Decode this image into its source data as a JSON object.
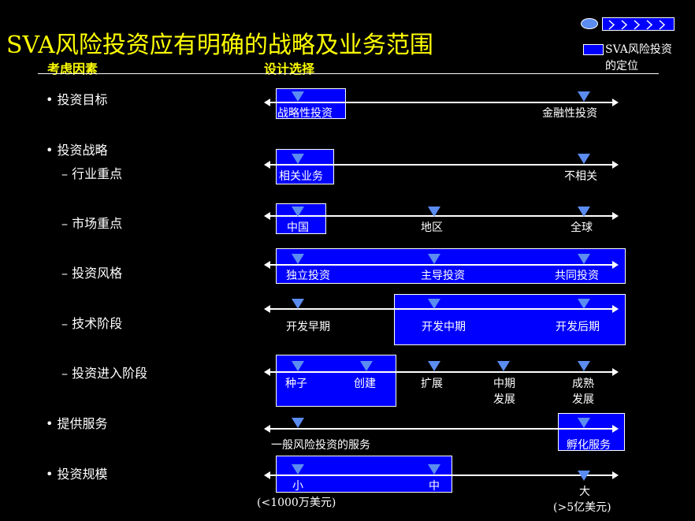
{
  "title": "SVA风险投资应有明确的战略及业务范围",
  "legend": {
    "line1": "SVA风险投资",
    "line2": "的定位"
  },
  "headers": {
    "left": "考虑因素",
    "right": "设计选择"
  },
  "rows": {
    "goal": {
      "label": "投资目标",
      "a": "战略性投资",
      "b": "金融性投资"
    },
    "strategy": {
      "label": "投资战略"
    },
    "industry": {
      "label": "行业重点",
      "a": "相关业务",
      "b": "不相关"
    },
    "market": {
      "label": "市场重点",
      "a": "中国",
      "b": "地区",
      "c": "全球"
    },
    "style": {
      "label": "投资风格",
      "a": "独立投资",
      "b": "主导投资",
      "c": "共同投资"
    },
    "tech": {
      "label": "技术阶段",
      "a": "开发早期",
      "b": "开发中期",
      "c": "开发后期"
    },
    "stage": {
      "label": "投资进入阶段",
      "a": "种子",
      "b": "创建",
      "c": "扩展",
      "d1": "中期",
      "d2": "发展",
      "e1": "成熟",
      "e2": "发展"
    },
    "service": {
      "label": "提供服务",
      "a": "一般风险投资的服务",
      "b": "孵化服务"
    },
    "scale": {
      "label": "投资规模",
      "a": "小",
      "a_note": "(<1000万美元)",
      "b": "中",
      "c": "大",
      "c_note": "(>5亿美元)"
    }
  },
  "colors": {
    "title": "#ffff00",
    "background": "#000000",
    "box": "#0000ff",
    "marker": "#5b8cf0"
  }
}
